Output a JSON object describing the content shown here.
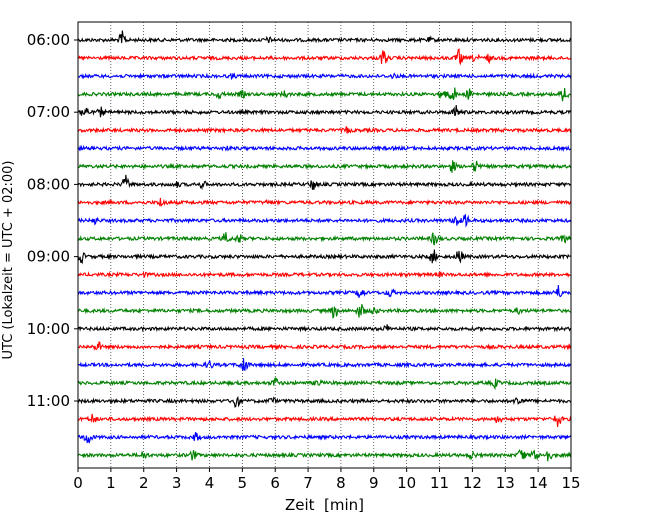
{
  "chart_data": {
    "type": "line",
    "chart_kind": "seismogram-helicorder",
    "xlabel": "Zeit  [min]",
    "ylabel": "UTC (Lokalzeit = UTC + 02:00)",
    "xlim": [
      0,
      15
    ],
    "x_ticks": [
      "0",
      "1",
      "2",
      "3",
      "4",
      "5",
      "6",
      "7",
      "8",
      "9",
      "10",
      "11",
      "12",
      "13",
      "14",
      "15"
    ],
    "x_grid": "dotted",
    "y_ticks": [
      "06:00",
      "07:00",
      "08:00",
      "09:00",
      "10:00",
      "11:00"
    ],
    "trace_interval_min": 15,
    "trace_colors": [
      "#000000",
      "#ff0000",
      "#0000ff",
      "#008000"
    ],
    "traces": [
      {
        "start": "06:00",
        "events": [
          {
            "t": 1.35,
            "amp": 1.0
          },
          {
            "t": 5.8,
            "amp": 0.25
          },
          {
            "t": 10.7,
            "amp": 0.2
          }
        ]
      },
      {
        "start": "06:15",
        "events": [
          {
            "t": 9.3,
            "amp": 1.0
          },
          {
            "t": 11.6,
            "amp": 1.0
          },
          {
            "t": 12.1,
            "amp": 0.5
          },
          {
            "t": 12.5,
            "amp": 0.4
          }
        ]
      },
      {
        "start": "06:30",
        "events": [
          {
            "t": 4.7,
            "amp": 0.2
          },
          {
            "t": 9.6,
            "amp": 0.2
          }
        ]
      },
      {
        "start": "06:45",
        "events": [
          {
            "t": 4.3,
            "amp": 0.45
          },
          {
            "t": 5.0,
            "amp": 0.35
          },
          {
            "t": 6.3,
            "amp": 0.35
          },
          {
            "t": 11.1,
            "amp": 0.9
          },
          {
            "t": 11.4,
            "amp": 1.1
          },
          {
            "t": 11.9,
            "amp": 0.6
          },
          {
            "t": 14.8,
            "amp": 1.1
          }
        ]
      },
      {
        "start": "07:00",
        "events": [
          {
            "t": 0.2,
            "amp": 1.0
          },
          {
            "t": 0.7,
            "amp": 0.5
          },
          {
            "t": 11.5,
            "amp": 0.8
          }
        ]
      },
      {
        "start": "07:15",
        "events": [
          {
            "t": 8.2,
            "amp": 0.35
          }
        ]
      },
      {
        "start": "07:30",
        "events": [
          {
            "t": 4.5,
            "amp": 0.15
          }
        ]
      },
      {
        "start": "07:45",
        "events": [
          {
            "t": 11.4,
            "amp": 0.7
          },
          {
            "t": 12.1,
            "amp": 0.7
          }
        ]
      },
      {
        "start": "08:00",
        "events": [
          {
            "t": 1.45,
            "amp": 1.0
          },
          {
            "t": 3.0,
            "amp": 0.3
          },
          {
            "t": 3.8,
            "amp": 0.4
          },
          {
            "t": 7.15,
            "amp": 0.7
          }
        ]
      },
      {
        "start": "08:15",
        "events": [
          {
            "t": 2.55,
            "amp": 0.6
          },
          {
            "t": 5.8,
            "amp": 0.2
          }
        ]
      },
      {
        "start": "08:30",
        "events": [
          {
            "t": 0.5,
            "amp": 0.4
          },
          {
            "t": 11.5,
            "amp": 0.8
          },
          {
            "t": 11.8,
            "amp": 0.7
          }
        ]
      },
      {
        "start": "08:45",
        "events": [
          {
            "t": 4.5,
            "amp": 0.7
          },
          {
            "t": 4.9,
            "amp": 0.5
          },
          {
            "t": 10.85,
            "amp": 0.8
          },
          {
            "t": 14.8,
            "amp": 0.4
          }
        ]
      },
      {
        "start": "09:00",
        "events": [
          {
            "t": 0.1,
            "amp": 0.7
          },
          {
            "t": 10.8,
            "amp": 0.9
          },
          {
            "t": 11.6,
            "amp": 1.0
          }
        ]
      },
      {
        "start": "09:15",
        "events": [
          {
            "t": 2.0,
            "amp": 0.2
          },
          {
            "t": 11.0,
            "amp": 0.2
          }
        ]
      },
      {
        "start": "09:30",
        "events": [
          {
            "t": 8.6,
            "amp": 0.8
          },
          {
            "t": 9.5,
            "amp": 0.5
          },
          {
            "t": 14.6,
            "amp": 0.9
          }
        ]
      },
      {
        "start": "09:45",
        "events": [
          {
            "t": 7.8,
            "amp": 0.9
          },
          {
            "t": 8.6,
            "amp": 1.0
          },
          {
            "t": 9.0,
            "amp": 0.4
          },
          {
            "t": 13.4,
            "amp": 0.3
          }
        ]
      },
      {
        "start": "10:00",
        "events": [
          {
            "t": 9.4,
            "amp": 0.4
          }
        ]
      },
      {
        "start": "10:15",
        "events": [
          {
            "t": 0.6,
            "amp": 0.6
          }
        ]
      },
      {
        "start": "10:30",
        "events": [
          {
            "t": 4.0,
            "amp": 0.5
          },
          {
            "t": 5.05,
            "amp": 1.1
          }
        ]
      },
      {
        "start": "10:45",
        "events": [
          {
            "t": 6.0,
            "amp": 0.6
          },
          {
            "t": 7.3,
            "amp": 0.4
          },
          {
            "t": 12.7,
            "amp": 0.5
          }
        ]
      },
      {
        "start": "11:00",
        "events": [
          {
            "t": 4.8,
            "amp": 1.0
          },
          {
            "t": 5.9,
            "amp": 0.4
          },
          {
            "t": 13.4,
            "amp": 0.7
          }
        ]
      },
      {
        "start": "11:15",
        "events": [
          {
            "t": 0.45,
            "amp": 0.6
          },
          {
            "t": 12.8,
            "amp": 0.5
          },
          {
            "t": 14.6,
            "amp": 0.9
          }
        ]
      },
      {
        "start": "11:30",
        "events": [
          {
            "t": 0.3,
            "amp": 1.0
          },
          {
            "t": 3.6,
            "amp": 0.5
          }
        ]
      },
      {
        "start": "11:45",
        "events": [
          {
            "t": 2.0,
            "amp": 0.5
          },
          {
            "t": 3.5,
            "amp": 0.6
          },
          {
            "t": 12.0,
            "amp": 0.4
          },
          {
            "t": 13.5,
            "amp": 1.0
          },
          {
            "t": 13.9,
            "amp": 0.9
          },
          {
            "t": 14.3,
            "amp": 0.8
          }
        ]
      }
    ]
  }
}
